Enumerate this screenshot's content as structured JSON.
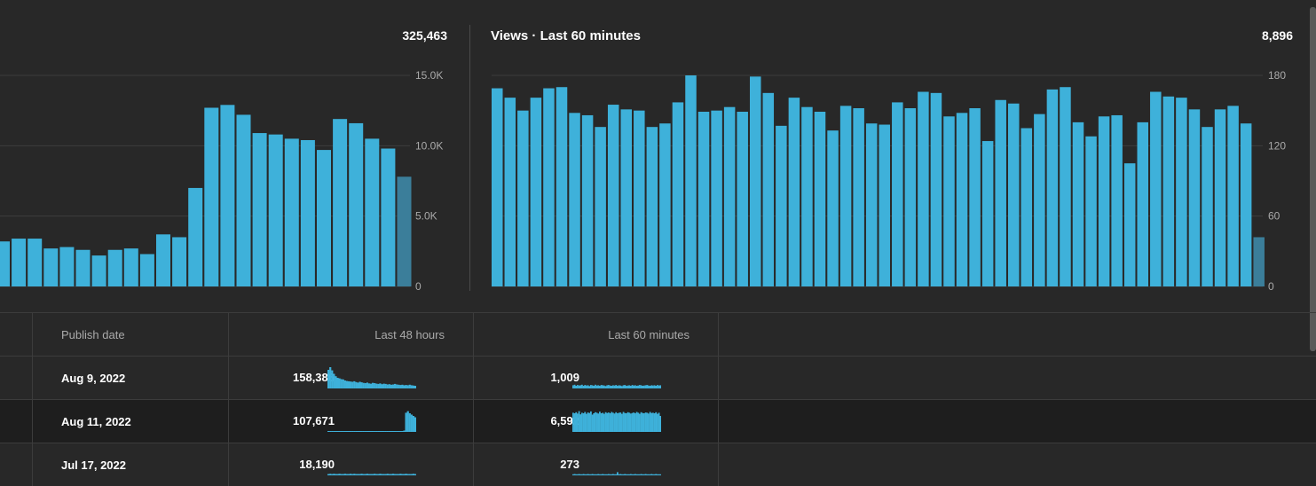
{
  "left_chart": {
    "title": "",
    "total": "325,463"
  },
  "right_chart": {
    "title": "Views · Last 60 minutes",
    "total": "8,896"
  },
  "table": {
    "headers": [
      "Publish date",
      "Last 48 hours",
      "Last 60 minutes"
    ],
    "rows": [
      {
        "publish_date": "Aug 9, 2022",
        "last48": "158,386",
        "last60": "1,009"
      },
      {
        "publish_date": "Aug 11, 2022",
        "last48": "107,671",
        "last60": "6,592"
      },
      {
        "publish_date": "Jul 17, 2022",
        "last48": "18,190",
        "last60": "273"
      }
    ]
  },
  "colors": {
    "bar": "#3eb1da",
    "bar_current": "#3b7e9a",
    "background": "#282828",
    "grid": "#3c3c3c"
  },
  "chart_data": [
    {
      "type": "bar",
      "title": "",
      "ylabel": "",
      "ylim": [
        0,
        15000
      ],
      "yticks": [
        "0",
        "5.0K",
        "10.0K",
        "15.0K"
      ],
      "values": [
        3200,
        3400,
        3400,
        2700,
        2800,
        2600,
        2200,
        2600,
        2700,
        2300,
        3700,
        3500,
        7000,
        12700,
        12900,
        12200,
        10900,
        10800,
        10500,
        10400,
        9700,
        11900,
        11600,
        10500,
        9800,
        7800
      ],
      "current_bar_shaded": true
    },
    {
      "type": "bar",
      "title": "Views · Last 60 minutes",
      "ylabel": "",
      "ylim": [
        0,
        180
      ],
      "yticks": [
        "0",
        "60",
        "120",
        "180"
      ],
      "values": [
        169,
        161,
        150,
        161,
        169,
        170,
        148,
        146,
        136,
        155,
        151,
        150,
        136,
        139,
        157,
        180,
        149,
        150,
        153,
        149,
        179,
        165,
        137,
        161,
        153,
        149,
        133,
        154,
        152,
        139,
        138,
        157,
        152,
        166,
        165,
        145,
        148,
        152,
        124,
        159,
        156,
        135,
        147,
        168,
        170,
        140,
        128,
        145,
        146,
        105,
        140,
        166,
        162,
        161,
        151,
        136,
        151,
        154,
        139,
        42
      ],
      "current_bar_shaded": true
    }
  ],
  "sparklines": [
    {
      "last48": [
        70,
        80,
        68,
        55,
        46,
        40,
        38,
        35,
        34,
        30,
        28,
        27,
        26,
        25,
        27,
        24,
        22,
        25,
        23,
        21,
        20,
        22,
        19,
        18,
        21,
        20,
        18,
        17,
        19,
        16,
        18,
        17,
        15,
        16,
        14,
        15,
        17,
        15,
        14,
        13,
        14,
        12,
        13,
        12,
        14,
        12,
        11,
        10
      ],
      "last60": [
        12,
        14,
        10,
        13,
        11,
        12,
        14,
        10,
        13,
        11,
        12,
        9,
        13,
        12,
        10,
        14,
        11,
        12,
        10,
        13,
        12,
        11,
        9,
        12,
        13,
        11,
        10,
        12,
        11,
        13,
        10,
        12,
        11,
        9,
        12,
        13,
        10,
        11,
        12,
        10,
        13,
        11,
        12,
        10,
        11,
        13,
        12,
        10,
        11,
        12,
        13,
        11,
        10,
        12,
        11,
        12,
        10,
        13,
        11,
        12
      ]
    },
    {
      "last48": [
        0,
        0,
        0,
        0,
        0,
        0,
        0,
        0,
        0,
        0,
        0,
        0,
        0,
        0,
        0,
        0,
        0,
        0,
        0,
        0,
        0,
        0,
        0,
        0,
        0,
        0,
        0,
        0,
        0,
        0,
        0,
        0,
        0,
        0,
        0,
        0,
        0,
        0,
        0,
        0,
        0,
        5,
        72,
        78,
        70,
        65,
        60,
        55
      ],
      "last60": [
        72,
        70,
        74,
        69,
        78,
        66,
        72,
        70,
        75,
        68,
        73,
        71,
        77,
        65,
        70,
        74,
        72,
        69,
        76,
        70,
        72,
        68,
        74,
        71,
        73,
        70,
        75,
        72,
        69,
        74,
        70,
        72,
        73,
        68,
        75,
        71,
        70,
        74,
        72,
        69,
        71,
        73,
        70,
        75,
        72,
        68,
        74,
        71,
        70,
        73,
        72,
        69,
        75,
        71,
        72,
        70,
        74,
        68,
        72,
        60
      ]
    },
    {
      "last48": [
        5,
        6,
        5,
        6,
        5,
        5,
        6,
        5,
        5,
        6,
        5,
        5,
        6,
        5,
        6,
        5,
        5,
        5,
        6,
        5,
        5,
        6,
        5,
        5,
        5,
        6,
        5,
        5,
        6,
        5,
        5,
        5,
        6,
        5,
        5,
        6,
        5,
        5,
        5,
        6,
        5,
        5,
        6,
        5,
        5,
        5,
        6,
        5
      ],
      "last60": [
        4,
        5,
        4,
        4,
        5,
        4,
        4,
        5,
        4,
        4,
        5,
        4,
        4,
        5,
        4,
        4,
        4,
        5,
        4,
        4,
        5,
        4,
        4,
        4,
        5,
        4,
        4,
        5,
        4,
        4,
        12,
        4,
        5,
        4,
        4,
        5,
        4,
        4,
        4,
        5,
        4,
        4,
        5,
        4,
        4,
        4,
        5,
        4,
        4,
        5,
        4,
        4,
        4,
        5,
        4,
        4,
        5,
        4,
        4,
        4
      ]
    }
  ]
}
